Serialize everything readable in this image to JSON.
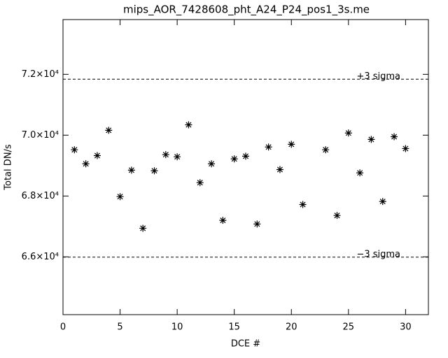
{
  "chart_data": {
    "type": "scatter",
    "title": "mips_AOR_7428608_pht_A24_P24_pos1_3s.me",
    "x_label": "DCE #",
    "y_label": "Total DN/s",
    "x": [
      1,
      2,
      3,
      4,
      5,
      6,
      7,
      8,
      9,
      10,
      11,
      12,
      13,
      14,
      15,
      16,
      17,
      18,
      19,
      20,
      21,
      23,
      24,
      25,
      26,
      27,
      28,
      29,
      30
    ],
    "values": [
      69520,
      69060,
      69330,
      70160,
      67980,
      68850,
      66940,
      68830,
      69360,
      69290,
      70340,
      68440,
      69060,
      67200,
      69220,
      69310,
      67080,
      69610,
      68870,
      69700,
      67720,
      69520,
      67360,
      70070,
      68760,
      69860,
      67820,
      69950,
      69560
    ],
    "color": "#000000",
    "xlim": [
      0,
      32
    ],
    "xticks": [
      0,
      5,
      10,
      15,
      20,
      25,
      30
    ],
    "ylim": [
      64100,
      73800
    ],
    "yticks": [
      {
        "value": 66000,
        "label": "6.6×10⁴"
      },
      {
        "value": 68000,
        "label": "6.8×10⁴"
      },
      {
        "value": 70000,
        "label": "7.0×10⁴"
      },
      {
        "value": 72000,
        "label": "7.2×10⁴"
      }
    ],
    "reference_lines": [
      {
        "value": 71840,
        "label": "+3 sigma"
      },
      {
        "value": 65990,
        "label": "−3 sigma"
      }
    ]
  }
}
